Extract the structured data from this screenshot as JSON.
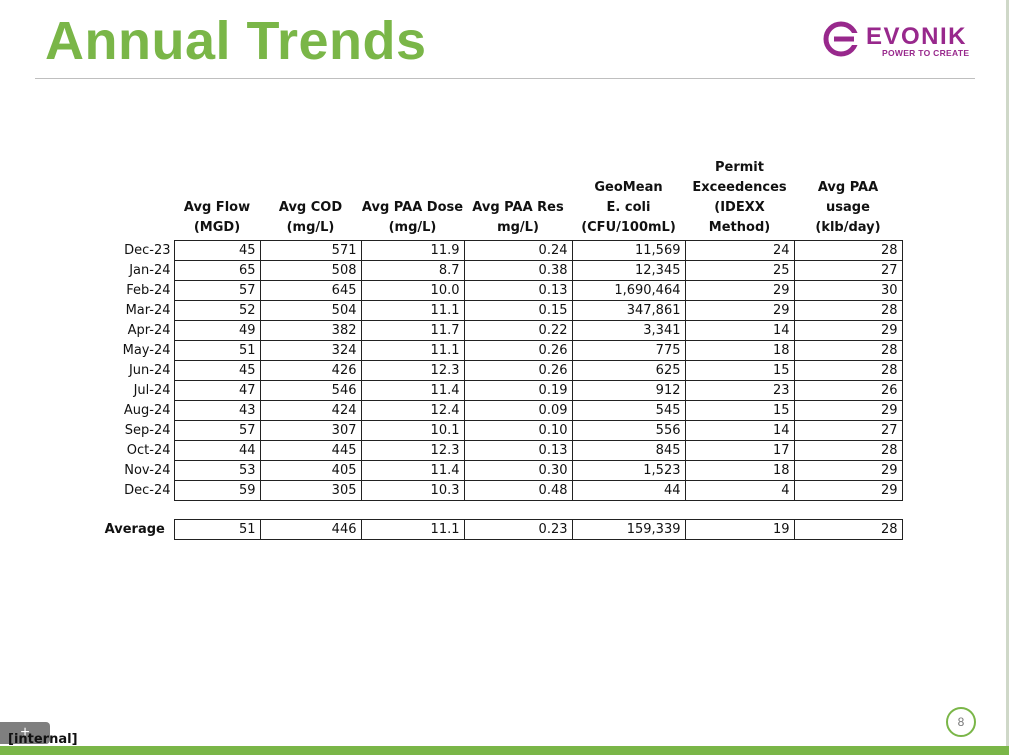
{
  "slide": {
    "title": "Annual Trends",
    "page_number": "8",
    "classification": "[internal]",
    "add_button_glyph": "+"
  },
  "logo": {
    "wordmark": "EVONIK",
    "tagline": "POWER TO CREATE",
    "color": "#98288c"
  },
  "theme": {
    "accent": "#7ab648"
  },
  "table": {
    "columns": [
      "Avg Flow\n(MGD)",
      "Avg COD\n(mg/L)",
      "Avg PAA Dose\n(mg/L)",
      "Avg  PAA Res\nmg/L)",
      "GeoMean\nE. coli\n(CFU/100mL)",
      "Permit\nExceedences\n(IDEXX Method)",
      "Avg PAA usage\n(klb/day)"
    ],
    "rows": [
      {
        "month": "Dec-23",
        "values": [
          "45",
          "571",
          "11.9",
          "0.24",
          "11,569",
          "24",
          "28"
        ]
      },
      {
        "month": "Jan-24",
        "values": [
          "65",
          "508",
          "8.7",
          "0.38",
          "12,345",
          "25",
          "27"
        ]
      },
      {
        "month": "Feb-24",
        "values": [
          "57",
          "645",
          "10.0",
          "0.13",
          "1,690,464",
          "29",
          "30"
        ]
      },
      {
        "month": "Mar-24",
        "values": [
          "52",
          "504",
          "11.1",
          "0.15",
          "347,861",
          "29",
          "28"
        ]
      },
      {
        "month": "Apr-24",
        "values": [
          "49",
          "382",
          "11.7",
          "0.22",
          "3,341",
          "14",
          "29"
        ]
      },
      {
        "month": "May-24",
        "values": [
          "51",
          "324",
          "11.1",
          "0.26",
          "775",
          "18",
          "28"
        ]
      },
      {
        "month": "Jun-24",
        "values": [
          "45",
          "426",
          "12.3",
          "0.26",
          "625",
          "15",
          "28"
        ]
      },
      {
        "month": "Jul-24",
        "values": [
          "47",
          "546",
          "11.4",
          "0.19",
          "912",
          "23",
          "26"
        ]
      },
      {
        "month": "Aug-24",
        "values": [
          "43",
          "424",
          "12.4",
          "0.09",
          "545",
          "15",
          "29"
        ]
      },
      {
        "month": "Sep-24",
        "values": [
          "57",
          "307",
          "10.1",
          "0.10",
          "556",
          "14",
          "27"
        ]
      },
      {
        "month": "Oct-24",
        "values": [
          "44",
          "445",
          "12.3",
          "0.13",
          "845",
          "17",
          "28"
        ]
      },
      {
        "month": "Nov-24",
        "values": [
          "53",
          "405",
          "11.4",
          "0.30",
          "1,523",
          "18",
          "29"
        ]
      },
      {
        "month": "Dec-24",
        "values": [
          "59",
          "305",
          "10.3",
          "0.48",
          "44",
          "4",
          "29"
        ]
      }
    ],
    "average": {
      "label": "Average",
      "values": [
        "51",
        "446",
        "11.1",
        "0.23",
        "159,339",
        "19",
        "28"
      ]
    }
  }
}
